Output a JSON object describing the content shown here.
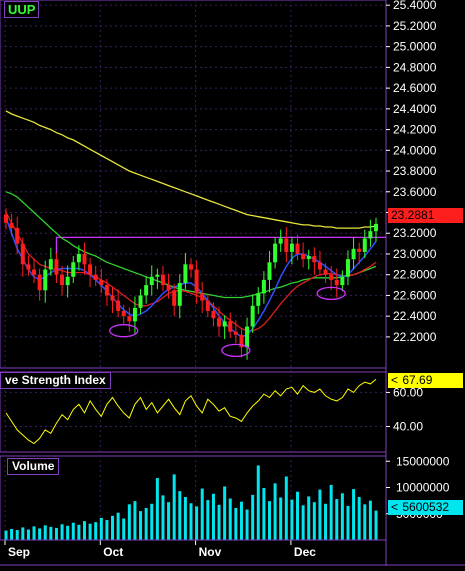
{
  "ticker": "UUP",
  "chart_data": [
    {
      "type": "candlestick",
      "title": "UUP",
      "x_labels": [
        "Sep",
        "Oct",
        "Nov",
        "Dec"
      ],
      "ylim": [
        21.9,
        25.45
      ],
      "y_ticks": [
        "25.4000",
        "25.2000",
        "25.0000",
        "24.8000",
        "24.6000",
        "24.4000",
        "24.2000",
        "24.0000",
        "23.8000",
        "23.6000",
        "23.4000",
        "23.2000",
        "23.0000",
        "22.8000",
        "22.6000",
        "22.4000",
        "22.2000"
      ],
      "last_price_label": "23.2881",
      "up_color": "#2fff2f",
      "down_color": "#ff1e1e",
      "closes": [
        23.3,
        23.25,
        23.1,
        22.9,
        22.85,
        22.8,
        22.65,
        22.85,
        22.95,
        22.8,
        22.7,
        22.78,
        22.92,
        23.0,
        22.9,
        22.8,
        22.75,
        22.7,
        22.6,
        22.55,
        22.45,
        22.4,
        22.35,
        22.48,
        22.6,
        22.7,
        22.78,
        22.8,
        22.7,
        22.65,
        22.5,
        22.72,
        22.9,
        22.85,
        22.62,
        22.55,
        22.45,
        22.38,
        22.3,
        22.35,
        22.25,
        22.22,
        22.1,
        22.3,
        22.5,
        22.62,
        22.75,
        22.92,
        23.1,
        23.15,
        23.02,
        23.1,
        23.0,
        22.95,
        22.98,
        22.92,
        22.85,
        22.8,
        22.75,
        22.7,
        22.78,
        22.95,
        23.05,
        23.02,
        23.15,
        23.22,
        23.29
      ],
      "ma_200": [
        24.38,
        24.35,
        24.33,
        24.31,
        24.29,
        24.27,
        24.24,
        24.22,
        24.2,
        24.17,
        24.15,
        24.12,
        24.1,
        24.07,
        24.04,
        24.01,
        23.98,
        23.95,
        23.92,
        23.89,
        23.86,
        23.83,
        23.8,
        23.78,
        23.76,
        23.74,
        23.72,
        23.7,
        23.68,
        23.66,
        23.64,
        23.62,
        23.6,
        23.58,
        23.56,
        23.54,
        23.52,
        23.5,
        23.48,
        23.46,
        23.44,
        23.42,
        23.4,
        23.38,
        23.37,
        23.36,
        23.35,
        23.34,
        23.33,
        23.32,
        23.31,
        23.3,
        23.29,
        23.28,
        23.28,
        23.27,
        23.27,
        23.26,
        23.26,
        23.25,
        23.25,
        23.25,
        23.25,
        23.25,
        23.26,
        23.26,
        23.27
      ],
      "ma_50": [
        23.6,
        23.58,
        23.55,
        23.5,
        23.45,
        23.4,
        23.35,
        23.3,
        23.25,
        23.2,
        23.15,
        23.12,
        23.08,
        23.05,
        23.02,
        23.0,
        22.98,
        22.95,
        22.92,
        22.9,
        22.88,
        22.86,
        22.84,
        22.82,
        22.8,
        22.78,
        22.76,
        22.74,
        22.72,
        22.7,
        22.68,
        22.66,
        22.65,
        22.64,
        22.63,
        22.62,
        22.61,
        22.6,
        22.59,
        22.58,
        22.58,
        22.58,
        22.58,
        22.59,
        22.6,
        22.62,
        22.63,
        22.65,
        22.67,
        22.68,
        22.7,
        22.72,
        22.73,
        22.75,
        22.76,
        22.77,
        22.77,
        22.77,
        22.77,
        22.77,
        22.78,
        22.79,
        22.8,
        22.82,
        22.84,
        22.86,
        22.88
      ],
      "ma_20": [
        23.4,
        23.3,
        23.2,
        23.1,
        23.0,
        22.95,
        22.9,
        22.88,
        22.86,
        22.85,
        22.84,
        22.82,
        22.82,
        22.82,
        22.82,
        22.8,
        22.78,
        22.75,
        22.72,
        22.68,
        22.64,
        22.6,
        22.56,
        22.52,
        22.5,
        22.5,
        22.52,
        22.54,
        22.58,
        22.62,
        22.64,
        22.65,
        22.64,
        22.62,
        22.6,
        22.58,
        22.55,
        22.5,
        22.45,
        22.4,
        22.36,
        22.32,
        22.28,
        22.26,
        22.26,
        22.28,
        22.32,
        22.38,
        22.45,
        22.52,
        22.58,
        22.64,
        22.69,
        22.72,
        22.75,
        22.78,
        22.8,
        22.81,
        22.81,
        22.8,
        22.79,
        22.79,
        22.8,
        22.82,
        22.85,
        22.88,
        22.92
      ],
      "ma_10": [
        23.35,
        23.2,
        23.05,
        22.95,
        22.85,
        22.78,
        22.75,
        22.78,
        22.82,
        22.85,
        22.86,
        22.86,
        22.86,
        22.86,
        22.84,
        22.8,
        22.75,
        22.7,
        22.64,
        22.58,
        22.52,
        22.46,
        22.42,
        22.4,
        22.42,
        22.45,
        22.5,
        22.56,
        22.62,
        22.66,
        22.68,
        22.7,
        22.72,
        22.72,
        22.68,
        22.62,
        22.55,
        22.48,
        22.4,
        22.34,
        22.28,
        22.24,
        22.2,
        22.22,
        22.28,
        22.36,
        22.45,
        22.55,
        22.66,
        22.78,
        22.88,
        22.96,
        23.0,
        23.0,
        22.98,
        22.95,
        22.92,
        22.88,
        22.84,
        22.8,
        22.78,
        22.8,
        22.86,
        22.92,
        22.98,
        23.05,
        23.12
      ],
      "resistance_level": 23.16,
      "ellipse_annotations": [
        {
          "index": 21,
          "price": 22.26
        },
        {
          "index": 41,
          "price": 22.07
        },
        {
          "index": 58,
          "price": 22.62
        }
      ]
    },
    {
      "type": "line",
      "title": "Relative Strength Index",
      "visible_title": "ve Strength Index",
      "ylim": [
        25,
        72
      ],
      "y_ticks": [
        "60.00",
        "40.00"
      ],
      "last_value_label": "67.69",
      "color": "#ffff00",
      "values": [
        48,
        43,
        38,
        35,
        32,
        30,
        33,
        38,
        36,
        42,
        47,
        44,
        50,
        53,
        48,
        55,
        50,
        46,
        53,
        57,
        52,
        48,
        45,
        53,
        57,
        50,
        54,
        48,
        52,
        56,
        51,
        47,
        55,
        58,
        52,
        48,
        56,
        53,
        49,
        51,
        46,
        45,
        43,
        48,
        52,
        55,
        59,
        57,
        61,
        58,
        62,
        63,
        59,
        64,
        61,
        60,
        62,
        58,
        56,
        55,
        57,
        62,
        60,
        64,
        66,
        65,
        67.69
      ]
    },
    {
      "type": "bar",
      "title": "Volume",
      "ylim": [
        0,
        16000000
      ],
      "y_ticks": [
        "15000000",
        "10000000",
        "5000000"
      ],
      "last_value_label": "5600532",
      "color": "#00e5ee",
      "values": [
        1800000,
        2100000,
        1900000,
        2400000,
        2000000,
        2600000,
        2200000,
        2800000,
        2500000,
        2300000,
        3000000,
        2700000,
        3300000,
        2900000,
        3600000,
        3100000,
        3400000,
        4200000,
        3800000,
        4600000,
        5200000,
        4100000,
        6800000,
        7400000,
        5500000,
        6100000,
        6900000,
        11800000,
        8500000,
        7200000,
        12500000,
        9300000,
        8200000,
        7000000,
        6400000,
        9800000,
        7600000,
        8800000,
        6700000,
        10200000,
        7900000,
        6100000,
        7300000,
        5800000,
        8600000,
        14200000,
        9900000,
        7400000,
        10800000,
        8100000,
        12100000,
        7700000,
        9200000,
        6600000,
        8300000,
        7200000,
        9600000,
        6900000,
        10500000,
        7800000,
        8900000,
        6500000,
        9700000,
        8200000,
        6800000,
        7500000,
        5600532
      ]
    }
  ]
}
